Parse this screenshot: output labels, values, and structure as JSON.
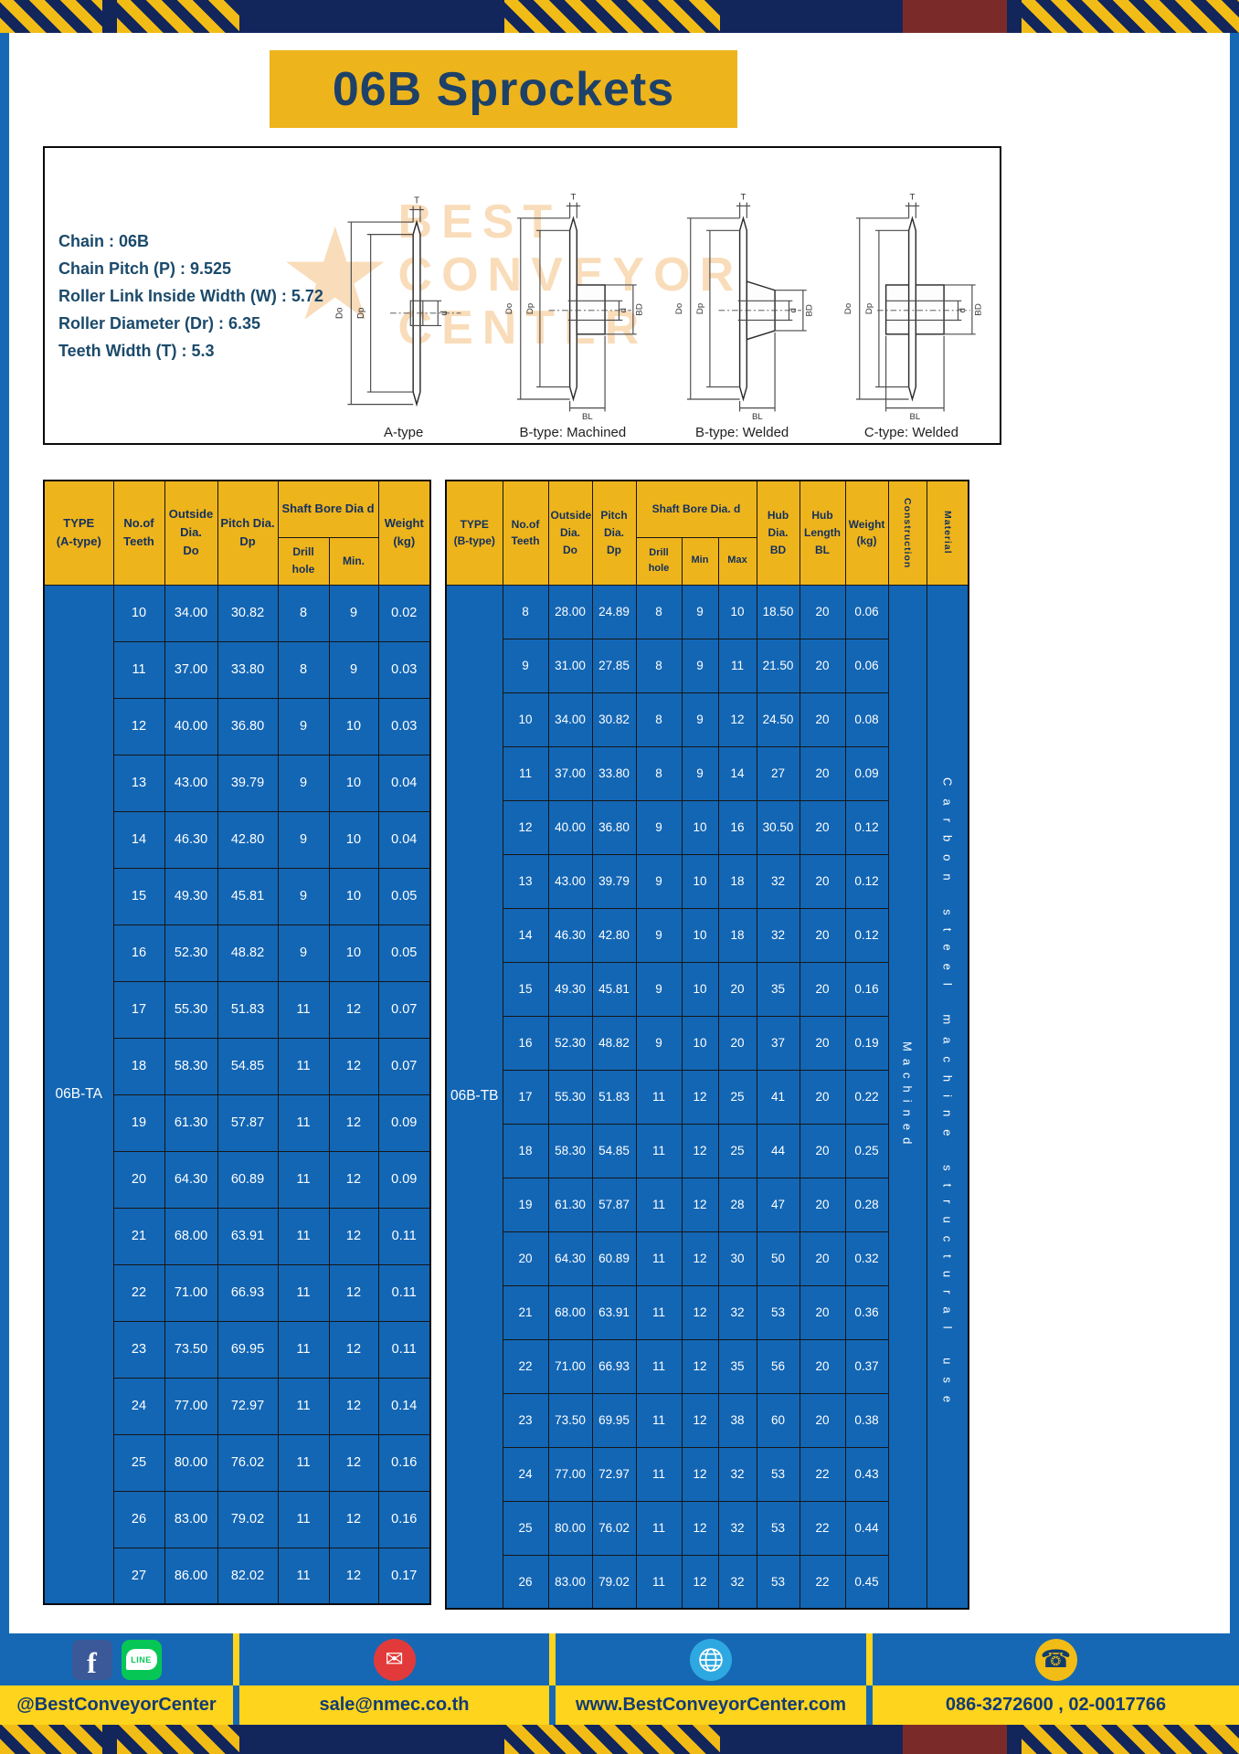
{
  "title": "06B Sprockets",
  "colors": {
    "frame_blue": "#1668b5",
    "cell_blue": "#1366b4",
    "header_yellow": "#eeb41c",
    "accent_yellow": "#f2bc16",
    "footer_yellow": "#ffd41c",
    "navy": "#12265c",
    "maroon": "#7b2a2a",
    "title_navy": "#1d4168",
    "spec_teal": "#1b4a6b"
  },
  "specs": {
    "lines": [
      "Chain : 06B",
      "Chain Pitch (P) : 9.525",
      "Roller Link Inside Width (W) : 5.72",
      "Roller Diameter (Dr) : 6.35",
      "Teeth Width (T) : 5.3"
    ],
    "dim": {
      "T": "T",
      "Do": "Do",
      "Dp": "Dp",
      "d": "d",
      "BD": "BD",
      "BL": "BL"
    },
    "captions": [
      "A-type",
      "B-type: Machined",
      "B-type: Welded",
      "C-type: Welded"
    ],
    "watermark_lines": [
      "BEST",
      "CONVEYOR",
      "CENTER"
    ],
    "watermark_star": "★"
  },
  "table_a": {
    "type_header": "TYPE\n(A-type)",
    "col_headers": [
      "No.of\nTeeth",
      "Outside\nDia.\nDo",
      "Pitch Dia.\nDp"
    ],
    "bore_header": "Shaft Bore Dia d",
    "bore_sub": [
      "Drill hole",
      "Min."
    ],
    "weight_header": "Weight\n(kg)",
    "type_value": "06B-TA",
    "rows": [
      [
        "10",
        "34.00",
        "30.82",
        "8",
        "9",
        "0.02"
      ],
      [
        "11",
        "37.00",
        "33.80",
        "8",
        "9",
        "0.03"
      ],
      [
        "12",
        "40.00",
        "36.80",
        "9",
        "10",
        "0.03"
      ],
      [
        "13",
        "43.00",
        "39.79",
        "9",
        "10",
        "0.04"
      ],
      [
        "14",
        "46.30",
        "42.80",
        "9",
        "10",
        "0.04"
      ],
      [
        "15",
        "49.30",
        "45.81",
        "9",
        "10",
        "0.05"
      ],
      [
        "16",
        "52.30",
        "48.82",
        "9",
        "10",
        "0.05"
      ],
      [
        "17",
        "55.30",
        "51.83",
        "11",
        "12",
        "0.07"
      ],
      [
        "18",
        "58.30",
        "54.85",
        "11",
        "12",
        "0.07"
      ],
      [
        "19",
        "61.30",
        "57.87",
        "11",
        "12",
        "0.09"
      ],
      [
        "20",
        "64.30",
        "60.89",
        "11",
        "12",
        "0.09"
      ],
      [
        "21",
        "68.00",
        "63.91",
        "11",
        "12",
        "0.11"
      ],
      [
        "22",
        "71.00",
        "66.93",
        "11",
        "12",
        "0.11"
      ],
      [
        "23",
        "73.50",
        "69.95",
        "11",
        "12",
        "0.11"
      ],
      [
        "24",
        "77.00",
        "72.97",
        "11",
        "12",
        "0.14"
      ],
      [
        "25",
        "80.00",
        "76.02",
        "11",
        "12",
        "0.16"
      ],
      [
        "26",
        "83.00",
        "79.02",
        "11",
        "12",
        "0.16"
      ],
      [
        "27",
        "86.00",
        "82.02",
        "11",
        "12",
        "0.17"
      ]
    ]
  },
  "table_b": {
    "type_header": "TYPE\n(B-type)",
    "col_headers": [
      "No.of\nTeeth",
      "Outside\nDia.\nDo",
      "Pitch\nDia.\nDp"
    ],
    "bore_header": "Shaft Bore Dia. d",
    "bore_sub": [
      "Drill hole",
      "Min",
      "Max"
    ],
    "hub_dia_header": "Hub\nDia.\nBD",
    "hub_len_header": "Hub\nLength\nBL",
    "weight_header": "Weight\n(kg)",
    "construction_header": "Construction",
    "material_header": "Material",
    "type_value": "06B-TB",
    "construction_value": "Machined",
    "material_value": "Carbon steel machine structural use",
    "rows": [
      [
        "8",
        "28.00",
        "24.89",
        "8",
        "9",
        "10",
        "18.50",
        "20",
        "0.06"
      ],
      [
        "9",
        "31.00",
        "27.85",
        "8",
        "9",
        "11",
        "21.50",
        "20",
        "0.06"
      ],
      [
        "10",
        "34.00",
        "30.82",
        "8",
        "9",
        "12",
        "24.50",
        "20",
        "0.08"
      ],
      [
        "11",
        "37.00",
        "33.80",
        "8",
        "9",
        "14",
        "27",
        "20",
        "0.09"
      ],
      [
        "12",
        "40.00",
        "36.80",
        "9",
        "10",
        "16",
        "30.50",
        "20",
        "0.12"
      ],
      [
        "13",
        "43.00",
        "39.79",
        "9",
        "10",
        "18",
        "32",
        "20",
        "0.12"
      ],
      [
        "14",
        "46.30",
        "42.80",
        "9",
        "10",
        "18",
        "32",
        "20",
        "0.12"
      ],
      [
        "15",
        "49.30",
        "45.81",
        "9",
        "10",
        "20",
        "35",
        "20",
        "0.16"
      ],
      [
        "16",
        "52.30",
        "48.82",
        "9",
        "10",
        "20",
        "37",
        "20",
        "0.19"
      ],
      [
        "17",
        "55.30",
        "51.83",
        "11",
        "12",
        "25",
        "41",
        "20",
        "0.22"
      ],
      [
        "18",
        "58.30",
        "54.85",
        "11",
        "12",
        "25",
        "44",
        "20",
        "0.25"
      ],
      [
        "19",
        "61.30",
        "57.87",
        "11",
        "12",
        "28",
        "47",
        "20",
        "0.28"
      ],
      [
        "20",
        "64.30",
        "60.89",
        "11",
        "12",
        "30",
        "50",
        "20",
        "0.32"
      ],
      [
        "21",
        "68.00",
        "63.91",
        "11",
        "12",
        "32",
        "53",
        "20",
        "0.36"
      ],
      [
        "22",
        "71.00",
        "66.93",
        "11",
        "12",
        "35",
        "56",
        "20",
        "0.37"
      ],
      [
        "23",
        "73.50",
        "69.95",
        "11",
        "12",
        "38",
        "60",
        "20",
        "0.38"
      ],
      [
        "24",
        "77.00",
        "72.97",
        "11",
        "12",
        "32",
        "53",
        "22",
        "0.43"
      ],
      [
        "25",
        "80.00",
        "76.02",
        "11",
        "12",
        "32",
        "53",
        "22",
        "0.44"
      ],
      [
        "26",
        "83.00",
        "79.02",
        "11",
        "12",
        "32",
        "53",
        "22",
        "0.45"
      ]
    ]
  },
  "footer": {
    "facebook": "@BestConveyorCenter",
    "email": "sale@nmec.co.th",
    "website": "www.BestConveyorCenter.com",
    "phone": "086-3272600 , 02-0017766",
    "facebook_letter": "f",
    "line_label": "LINE",
    "mail_glyph": "✉",
    "phone_glyph": "☎"
  }
}
